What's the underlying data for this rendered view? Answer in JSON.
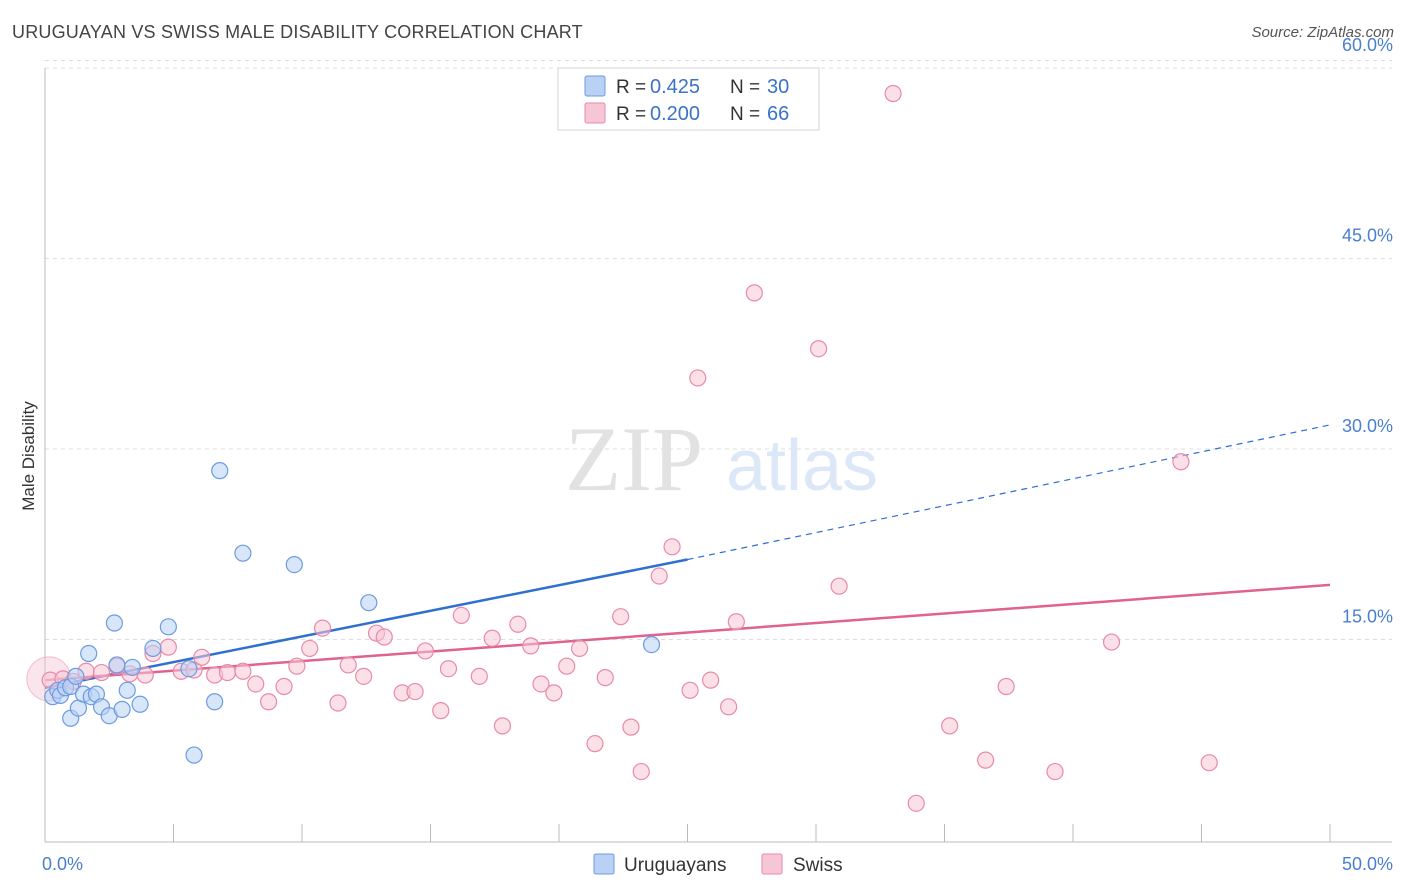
{
  "title": "URUGUAYAN VS SWISS MALE DISABILITY CORRELATION CHART",
  "source": "Source: ZipAtlas.com",
  "colors": {
    "uruguayan_fill": "#b8d1f5",
    "uruguayan_stroke": "#6d9be0",
    "uruguayan_line": "#2e6fd0",
    "swiss_fill": "#f7c6d6",
    "swiss_stroke": "#e88aaa",
    "swiss_line": "#e0628e",
    "tick_text": "#4a7fcf",
    "grid": "#dddddd"
  },
  "legend": {
    "rows": [
      {
        "r_label": "R =",
        "r_value": "0.425",
        "n_label": "N =",
        "n_value": "30"
      },
      {
        "r_label": "R =",
        "r_value": "0.200",
        "n_label": "N =",
        "n_value": "66"
      }
    ]
  },
  "watermark": {
    "zip": "ZIP",
    "atlas": "atlas"
  },
  "chart_data": {
    "type": "scatter",
    "title": "URUGUAYAN VS SWISS MALE DISABILITY CORRELATION CHART",
    "xlabel": "",
    "ylabel": "Male Disability",
    "xlim": [
      0,
      50
    ],
    "ylim": [
      0,
      63
    ],
    "x_tick_labels": [
      "0.0%",
      "50.0%"
    ],
    "y_ticks": [
      15,
      30,
      45,
      60
    ],
    "y_tick_labels": [
      "15.0%",
      "30.0%",
      "45.0%",
      "60.0%"
    ],
    "grid": true,
    "legend_position": "top-center",
    "series": [
      {
        "name": "Uruguayans",
        "color": "#6d9be0",
        "points": [
          [
            0.3,
            10.5
          ],
          [
            0.5,
            11.0
          ],
          [
            0.6,
            10.6
          ],
          [
            0.8,
            11.2
          ],
          [
            1.0,
            11.3
          ],
          [
            1.0,
            8.8
          ],
          [
            1.2,
            12.1
          ],
          [
            1.3,
            9.6
          ],
          [
            1.5,
            10.7
          ],
          [
            1.7,
            13.9
          ],
          [
            1.8,
            10.5
          ],
          [
            2.0,
            10.7
          ],
          [
            2.2,
            9.7
          ],
          [
            2.5,
            9.0
          ],
          [
            2.7,
            16.3
          ],
          [
            2.8,
            13.0
          ],
          [
            3.0,
            9.5
          ],
          [
            3.2,
            11.0
          ],
          [
            3.4,
            12.8
          ],
          [
            3.7,
            9.9
          ],
          [
            4.2,
            14.3
          ],
          [
            4.8,
            16.0
          ],
          [
            5.6,
            12.7
          ],
          [
            5.8,
            5.9
          ],
          [
            6.6,
            10.1
          ],
          [
            6.8,
            28.3
          ],
          [
            7.7,
            21.8
          ],
          [
            9.7,
            20.9
          ],
          [
            12.6,
            17.9
          ],
          [
            23.6,
            14.6
          ]
        ],
        "trend": {
          "x": [
            0.0,
            25.0
          ],
          "y": [
            11.2,
            21.3
          ],
          "extended": {
            "x": [
              25.0,
              50.0
            ],
            "y": [
              21.3,
              31.9
            ]
          }
        }
      },
      {
        "name": "Swiss",
        "color": "#e88aaa",
        "points": [
          [
            0.2,
            11.8
          ],
          [
            0.7,
            11.9
          ],
          [
            1.1,
            11.7
          ],
          [
            1.6,
            12.5
          ],
          [
            2.2,
            12.4
          ],
          [
            2.8,
            12.9
          ],
          [
            3.3,
            12.3
          ],
          [
            3.9,
            12.2
          ],
          [
            4.2,
            13.9
          ],
          [
            4.8,
            14.4
          ],
          [
            5.3,
            12.5
          ],
          [
            5.8,
            12.6
          ],
          [
            6.1,
            13.6
          ],
          [
            6.6,
            12.2
          ],
          [
            7.1,
            12.4
          ],
          [
            7.7,
            12.5
          ],
          [
            8.2,
            11.5
          ],
          [
            8.7,
            10.1
          ],
          [
            9.3,
            11.3
          ],
          [
            9.8,
            12.9
          ],
          [
            10.3,
            14.3
          ],
          [
            10.8,
            15.9
          ],
          [
            11.4,
            10.0
          ],
          [
            11.8,
            13.0
          ],
          [
            12.4,
            12.1
          ],
          [
            12.9,
            15.5
          ],
          [
            13.2,
            15.2
          ],
          [
            13.9,
            10.8
          ],
          [
            14.4,
            10.9
          ],
          [
            14.8,
            14.1
          ],
          [
            15.4,
            9.4
          ],
          [
            15.7,
            12.7
          ],
          [
            16.2,
            16.9
          ],
          [
            16.9,
            12.1
          ],
          [
            17.4,
            15.1
          ],
          [
            17.8,
            8.2
          ],
          [
            18.4,
            16.2
          ],
          [
            18.9,
            14.5
          ],
          [
            19.3,
            11.5
          ],
          [
            19.8,
            10.8
          ],
          [
            20.3,
            12.9
          ],
          [
            20.8,
            14.3
          ],
          [
            21.4,
            6.8
          ],
          [
            21.8,
            12.0
          ],
          [
            22.4,
            16.8
          ],
          [
            22.8,
            8.1
          ],
          [
            23.2,
            4.6
          ],
          [
            23.9,
            20.0
          ],
          [
            24.4,
            22.3
          ],
          [
            25.1,
            11.0
          ],
          [
            25.4,
            35.6
          ],
          [
            25.9,
            11.8
          ],
          [
            26.6,
            9.7
          ],
          [
            26.9,
            16.4
          ],
          [
            27.6,
            42.3
          ],
          [
            30.1,
            37.9
          ],
          [
            30.9,
            19.2
          ],
          [
            33.0,
            58.0
          ],
          [
            33.9,
            2.1
          ],
          [
            35.2,
            8.2
          ],
          [
            36.6,
            5.5
          ],
          [
            37.4,
            11.3
          ],
          [
            39.3,
            4.6
          ],
          [
            41.5,
            14.8
          ],
          [
            44.2,
            29.0
          ],
          [
            45.3,
            5.3
          ]
        ],
        "trend": {
          "x": [
            0.0,
            50.0
          ],
          "y": [
            11.8,
            19.3
          ]
        }
      }
    ]
  }
}
